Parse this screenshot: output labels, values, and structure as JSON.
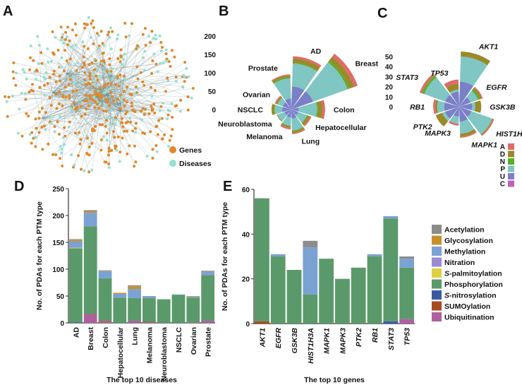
{
  "panels": {
    "a": "A",
    "b": "B",
    "c": "C",
    "d": "D",
    "e": "E"
  },
  "network": {
    "legend": [
      {
        "label": "Genes",
        "color": "#e0882a"
      },
      {
        "label": "Diseases",
        "color": "#96e0d2"
      }
    ]
  },
  "colors": {
    "polar": {
      "A": "#e06a6a",
      "D": "#9a8a2a",
      "N": "#5aae2a",
      "P": "#80c6c2",
      "U": "#7a80c8",
      "C": "#c060b8"
    },
    "ptm": {
      "Acetylation": "#8c8c8c",
      "Glycosylation": "#c8902a",
      "Methylation": "#7aa3d4",
      "Nitration": "#9a8ad2",
      "S-palmitoylation": "#e0d040",
      "Phosphorylation": "#5a9a6a",
      "S-nitrosylation": "#3a5aa0",
      "SUMOylation": "#a84a20",
      "Ubiquitination": "#b060a0"
    }
  },
  "polar_legend": [
    "A",
    "D",
    "N",
    "P",
    "U",
    "C"
  ],
  "ptm_legend": [
    {
      "prefix": "",
      "label": "Acetylation",
      "key": "Acetylation"
    },
    {
      "prefix": "",
      "label": "Glycosylation",
      "key": "Glycosylation"
    },
    {
      "prefix": "",
      "label": "Methylation",
      "key": "Methylation"
    },
    {
      "prefix": "",
      "label": "Nitration",
      "key": "Nitration"
    },
    {
      "prefix": "S",
      "label": "-palmitoylation",
      "key": "S-palmitoylation"
    },
    {
      "prefix": "",
      "label": "Phosphorylation",
      "key": "Phosphorylation"
    },
    {
      "prefix": "S",
      "label": "-nitrosylation",
      "key": "S-nitrosylation"
    },
    {
      "prefix": "",
      "label": "SUMOylation",
      "key": "SUMOylation"
    },
    {
      "prefix": "",
      "label": "Ubiquitination",
      "key": "Ubiquitination"
    }
  ],
  "chart_data": [
    {
      "panel": "B",
      "type": "polar-bar",
      "radial_ticks": [
        "0",
        "50",
        "100",
        "150",
        "200"
      ],
      "rlim": [
        0,
        200
      ],
      "stack_order": [
        "U",
        "P",
        "N",
        "D",
        "A"
      ],
      "categories": [
        "AD",
        "Breast",
        "Colon",
        "Hepatocellular",
        "Lung",
        "Melanoma",
        "Neuroblastoma",
        "NSCLC",
        "Ovarian",
        "Prostate"
      ],
      "series": [
        {
          "name": "U",
          "values": [
            63,
            63,
            20,
            20,
            25,
            22,
            20,
            25,
            25,
            30
          ]
        },
        {
          "name": "P",
          "values": [
            62,
            100,
            50,
            25,
            32,
            22,
            20,
            20,
            15,
            55
          ]
        },
        {
          "name": "N",
          "values": [
            2,
            5,
            3,
            2,
            2,
            1,
            0,
            2,
            1,
            3
          ]
        },
        {
          "name": "D",
          "values": [
            12,
            14,
            12,
            7,
            5,
            5,
            2,
            7,
            4,
            5
          ]
        },
        {
          "name": "A",
          "values": [
            6,
            10,
            7,
            4,
            3,
            4,
            0,
            0,
            3,
            3
          ]
        }
      ]
    },
    {
      "panel": "C",
      "type": "polar-bar",
      "radial_ticks": [
        "0",
        "10",
        "20",
        "30",
        "40",
        "50"
      ],
      "rlim": [
        0,
        50
      ],
      "stack_order": [
        "U",
        "P",
        "N",
        "D",
        "A"
      ],
      "categories": [
        "AKT1",
        "EGFR",
        "GSK3B",
        "HIST1H3A",
        "MAPK1",
        "MAPK3",
        "PTK2",
        "RB1",
        "STAT3",
        "TP53"
      ],
      "series": [
        {
          "name": "U",
          "values": [
            25,
            12,
            13,
            13,
            15,
            10,
            15,
            15,
            15,
            15
          ]
        },
        {
          "name": "P",
          "values": [
            25,
            8,
            3,
            22,
            12,
            7,
            3,
            7,
            22,
            2
          ]
        },
        {
          "name": "N",
          "values": [
            0,
            2,
            0,
            0,
            0,
            0,
            0,
            0,
            2,
            0
          ]
        },
        {
          "name": "D",
          "values": [
            5,
            2,
            6,
            1,
            3,
            0,
            7,
            2,
            1,
            6
          ]
        },
        {
          "name": "A",
          "values": [
            0,
            1,
            0,
            1,
            1,
            2,
            0,
            2,
            2,
            4
          ]
        }
      ]
    },
    {
      "panel": "D",
      "type": "bar",
      "stacked": true,
      "title": "",
      "xlabel": "The top 10 diseases",
      "ylabel": "No. of PDAs for each PTM type",
      "ylim": [
        0,
        250
      ],
      "yticks": [
        "0",
        "50",
        "100",
        "150",
        "200",
        "250"
      ],
      "categories": [
        "AD",
        "Breast",
        "Colon",
        "Hepatocellular",
        "Lung",
        "Melanoma",
        "Neuroblastoma",
        "NSCLC",
        "Ovarian",
        "Prostate"
      ],
      "series": [
        {
          "name": "Ubiquitination",
          "values": [
            0,
            16,
            3,
            0,
            4,
            1,
            0,
            0,
            1,
            4
          ]
        },
        {
          "name": "SUMOylation",
          "values": [
            0,
            1,
            1,
            0,
            0,
            1,
            0,
            0,
            0,
            0
          ]
        },
        {
          "name": "S-nitrosylation",
          "values": [
            1,
            0,
            0,
            0,
            0,
            0,
            0,
            0,
            0,
            0
          ]
        },
        {
          "name": "Phosphorylation",
          "values": [
            138,
            163,
            79,
            47,
            42,
            44,
            44,
            52,
            46,
            85
          ]
        },
        {
          "name": "S-palmitoylation",
          "values": [
            1,
            0,
            0,
            0,
            0,
            0,
            0,
            0,
            0,
            0
          ]
        },
        {
          "name": "Nitration",
          "values": [
            0,
            0,
            0,
            0,
            0,
            0,
            0,
            0,
            0,
            2
          ]
        },
        {
          "name": "Methylation",
          "values": [
            12,
            25,
            14,
            7,
            17,
            3,
            0,
            1,
            2,
            4
          ]
        },
        {
          "name": "Glycosylation",
          "values": [
            3,
            3,
            1,
            2,
            5,
            0,
            0,
            0,
            1,
            0
          ]
        },
        {
          "name": "Acetylation",
          "values": [
            1,
            2,
            0,
            0,
            2,
            1,
            0,
            0,
            0,
            2
          ]
        }
      ]
    },
    {
      "panel": "E",
      "type": "bar",
      "stacked": true,
      "title": "",
      "xlabel": "The top 10 genes",
      "ylabel": "No. of PDAs for each PTM type",
      "ylim": [
        0,
        60
      ],
      "yticks": [
        "0",
        "20",
        "40",
        "60"
      ],
      "categories": [
        "AKT1",
        "EGFR",
        "GSK3B",
        "HIST1H3A",
        "MAPK1",
        "MAPK3",
        "PTK2",
        "RB1",
        "STAT3",
        "TP53"
      ],
      "series": [
        {
          "name": "Ubiquitination",
          "values": [
            0,
            0,
            0,
            0,
            0,
            0,
            0,
            0,
            0,
            2
          ]
        },
        {
          "name": "SUMOylation",
          "values": [
            1,
            0,
            0,
            0,
            0,
            0,
            0,
            0,
            0,
            0
          ]
        },
        {
          "name": "S-nitrosylation",
          "values": [
            0,
            0,
            0,
            0,
            0,
            0,
            0,
            0,
            1,
            0
          ]
        },
        {
          "name": "Phosphorylation",
          "values": [
            55,
            30,
            24,
            13,
            29,
            20,
            25,
            30,
            46,
            23
          ]
        },
        {
          "name": "S-palmitoylation",
          "values": [
            0,
            0,
            0,
            0,
            0,
            0,
            0,
            0,
            0,
            0
          ]
        },
        {
          "name": "Nitration",
          "values": [
            0,
            0,
            0,
            0,
            0,
            0,
            0,
            0,
            0,
            0
          ]
        },
        {
          "name": "Methylation",
          "values": [
            0,
            1,
            0,
            21,
            0,
            0,
            0,
            1,
            1,
            4
          ]
        },
        {
          "name": "Glycosylation",
          "values": [
            0,
            0,
            0,
            0,
            0,
            0,
            0,
            0,
            0,
            0
          ]
        },
        {
          "name": "Acetylation",
          "values": [
            0,
            0,
            0,
            3,
            0,
            0,
            0,
            0,
            0,
            1
          ]
        }
      ]
    }
  ]
}
